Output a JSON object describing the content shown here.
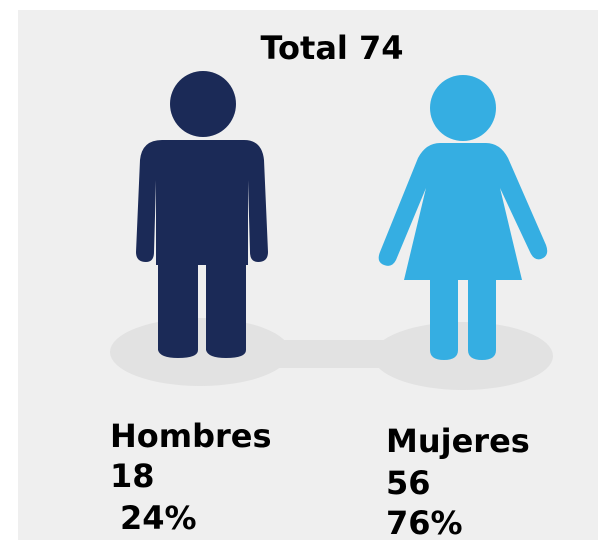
{
  "title": "Total 74",
  "groups": [
    {
      "label": "Hombres",
      "count": "18",
      "percent": "24%"
    },
    {
      "label": "Mujeres",
      "count": "56",
      "percent": "76%"
    }
  ]
}
